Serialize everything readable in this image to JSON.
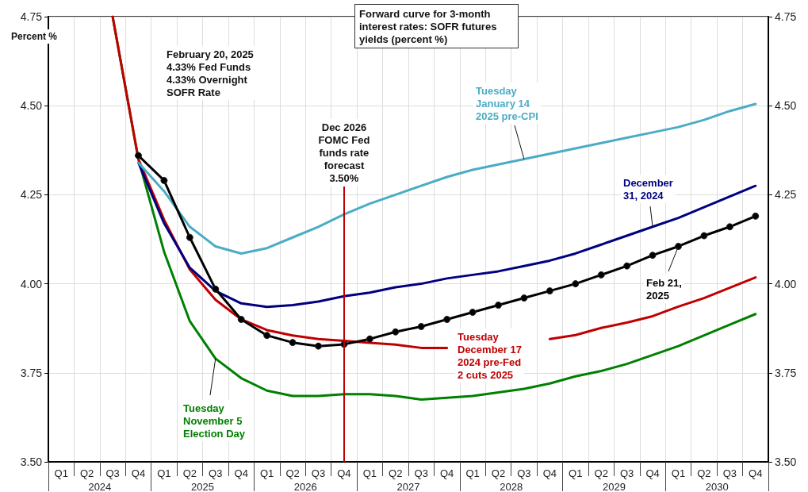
{
  "chart_data": {
    "type": "line",
    "title": "Forward curve for 3-month interest rates: SOFR futures yields (percent %)",
    "ylabel": "Percent %",
    "categories": [
      "Q1",
      "Q2",
      "Q3",
      "Q4",
      "Q1",
      "Q2",
      "Q3",
      "Q4",
      "Q1",
      "Q2",
      "Q3",
      "Q4",
      "Q1",
      "Q2",
      "Q3",
      "Q4",
      "Q1",
      "Q2",
      "Q3",
      "Q4",
      "Q1",
      "Q2",
      "Q3",
      "Q4",
      "Q1",
      "Q2",
      "Q3",
      "Q4"
    ],
    "series": [
      {
        "name": "Feb 21,\n2025",
        "color": "#000000",
        "marker": "circle",
        "values": [
          null,
          null,
          null,
          4.36,
          4.29,
          4.13,
          3.985,
          3.9,
          3.855,
          3.835,
          3.825,
          3.83,
          3.845,
          3.865,
          3.88,
          3.9,
          3.92,
          3.94,
          3.96,
          3.98,
          4.0,
          4.025,
          4.05,
          4.08,
          4.105,
          4.135,
          4.16,
          4.19
        ]
      },
      {
        "name": "Tuesday\nJanuary 14\n2025 pre-CPI",
        "color": "#4bacc6",
        "values": [
          null,
          null,
          null,
          4.34,
          4.26,
          4.16,
          4.105,
          4.085,
          4.1,
          4.13,
          4.16,
          4.195,
          4.225,
          4.25,
          4.275,
          4.3,
          4.32,
          4.335,
          4.35,
          4.365,
          4.38,
          4.395,
          4.41,
          4.425,
          4.44,
          4.46,
          4.485,
          4.505
        ]
      },
      {
        "name": "December\n31, 2024",
        "color": "#000080",
        "values": [
          null,
          null,
          null,
          4.34,
          4.17,
          4.045,
          3.98,
          3.945,
          3.935,
          3.94,
          3.95,
          3.965,
          3.975,
          3.99,
          4.0,
          4.015,
          4.025,
          4.035,
          4.05,
          4.065,
          4.085,
          4.11,
          4.135,
          4.16,
          4.185,
          4.215,
          4.245,
          4.275
        ]
      },
      {
        "name": "Tuesday\nDecember 17\n2024 pre-Fed\n2 cuts 2025",
        "color": "#c00000",
        "values": [
          null,
          null,
          4.75,
          4.35,
          4.18,
          4.04,
          3.955,
          3.9,
          3.87,
          3.855,
          3.845,
          3.84,
          3.834,
          3.829,
          3.82,
          3.82,
          null,
          null,
          null,
          3.845,
          3.856,
          3.876,
          3.891,
          3.909,
          3.936,
          3.96,
          3.989,
          4.018
        ]
      },
      {
        "name": "Tuesday\nNovember 5\nElection Day",
        "color": "#008000",
        "values": [
          null,
          null,
          4.75,
          4.35,
          4.09,
          3.895,
          3.79,
          3.735,
          3.7,
          3.685,
          3.685,
          3.69,
          3.69,
          3.685,
          3.675,
          3.68,
          3.685,
          3.695,
          3.705,
          3.72,
          3.74,
          3.755,
          3.775,
          3.8,
          3.825,
          3.855,
          3.885,
          3.915
        ]
      }
    ],
    "ylim": [
      3.5,
      4.75
    ],
    "yticks": [
      {
        "value": 3.5,
        "label": "3.50"
      },
      4.75,
      {
        "value": 4.5,
        "label": "4.50"
      },
      4.25,
      {
        "value": 4.0,
        "label": "4.00"
      },
      3.75
    ],
    "y2lim": [
      3.5,
      4.75
    ],
    "y2ticks": [
      {
        "value": 3.5,
        "label": "3.50"
      },
      4.75,
      {
        "value": 4.5,
        "label": "4.50"
      },
      4.25,
      {
        "value": 4.0,
        "label": "4.00"
      },
      3.75
    ],
    "annotations": [
      "February 20, 2025\n4.33% Fed Funds\n4.33% Overnight\nSOFR Rate",
      "Dec 2026\nFOMC Fed\nfunds rate\nforecast\n3.50%",
      "2024",
      "2025",
      "2026",
      "2027",
      "2028",
      "2029",
      "2030"
    ],
    "grid": true,
    "legend": false,
    "line_style": "solid"
  }
}
